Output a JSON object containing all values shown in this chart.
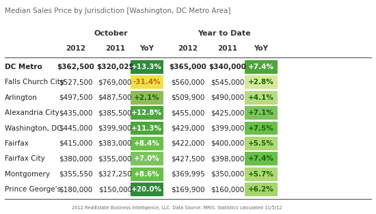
{
  "title": "Median Sales Price by Jurisdiction [Washington, DC Metro Area]",
  "footnote": "2012 RealEstate Business Intelligence, LLC. Data Source: MRIS. Statistics calculated 11/5/12",
  "col_groups": [
    "October",
    "Year to Date"
  ],
  "col_headers": [
    "2012",
    "2011",
    "YoY",
    "2012",
    "2011",
    "YoY"
  ],
  "row_labels": [
    "DC Metro",
    "Falls Church City",
    "Arlington",
    "Alexandria City",
    "Washington, DC",
    "Fairfax",
    "Fairfax City",
    "Montgomery",
    "Prince George's"
  ],
  "row_bold": [
    true,
    false,
    false,
    false,
    false,
    false,
    false,
    false,
    false
  ],
  "data": [
    [
      "$362,500",
      "$320,025",
      "+13.3%",
      "$365,000",
      "$340,000",
      "+7.4%"
    ],
    [
      "$527,500",
      "$769,000",
      "-31.4%",
      "$560,000",
      "$545,000",
      "+2.8%"
    ],
    [
      "$497,500",
      "$487,500",
      "+2.1%",
      "$509,900",
      "$490,000",
      "+4.1%"
    ],
    [
      "$435,000",
      "$385,500",
      "+12.8%",
      "$455,000",
      "$425,000",
      "+7.1%"
    ],
    [
      "$445,000",
      "$399,900",
      "+11.3%",
      "$429,000",
      "$399,000",
      "+7.5%"
    ],
    [
      "$415,000",
      "$383,000",
      "+8.4%",
      "$422,000",
      "$400,000",
      "+5.5%"
    ],
    [
      "$380,000",
      "$355,000",
      "+7.0%",
      "$427,500",
      "$398,000",
      "+7.4%"
    ],
    [
      "$355,550",
      "$327,250",
      "+8.6%",
      "$369,995",
      "$350,000",
      "+5.7%"
    ],
    [
      "$180,000",
      "$150,000",
      "+20.0%",
      "$169,900",
      "$160,000",
      "+6.2%"
    ]
  ],
  "yoy_colors_oct": [
    "#2e8b3a",
    "#f0e050",
    "#8fbc5a",
    "#4da63a",
    "#4da63a",
    "#6abf4b",
    "#7dc45e",
    "#6abf4b",
    "#2e8b3a"
  ],
  "yoy_colors_ytd": [
    "#4da63a",
    "#d4e8a0",
    "#b8da82",
    "#7dc45e",
    "#6abf4b",
    "#b0d876",
    "#6abf4b",
    "#b0d876",
    "#a8d470"
  ],
  "yoy_text_colors_oct": [
    "#ffffff",
    "#cc6600",
    "#1a6600",
    "#ffffff",
    "#ffffff",
    "#ffffff",
    "#ffffff",
    "#ffffff",
    "#ffffff"
  ],
  "yoy_text_colors_ytd": [
    "#ffffff",
    "#1a6600",
    "#1a6600",
    "#1a6600",
    "#1a6600",
    "#1a6600",
    "#1a6600",
    "#1a6600",
    "#1a6600"
  ],
  "bg_color": "#ffffff"
}
